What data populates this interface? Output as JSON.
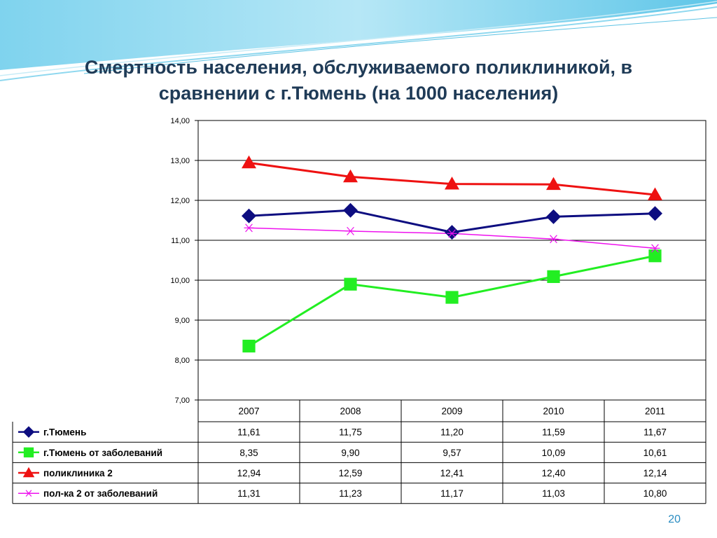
{
  "slide": {
    "title_line1": "Смертность населения, обслуживаемого поликлиникой, в",
    "title_line2": "сравнении с г.Тюмень (на 1000 населения)",
    "page_number": "20"
  },
  "colors": {
    "title": "#1f3b57",
    "page_number": "#2b8dc2"
  },
  "chart_data": {
    "type": "line",
    "categories": [
      "2007",
      "2008",
      "2009",
      "2010",
      "2011"
    ],
    "ylim": [
      7,
      14
    ],
    "ytick_labels": [
      "7,00",
      "8,00",
      "9,00",
      "10,00",
      "11,00",
      "12,00",
      "13,00",
      "14,00"
    ],
    "grid": true,
    "legend": "data-table-below",
    "series": [
      {
        "name": "г.Тюмень",
        "values": [
          11.61,
          11.75,
          11.2,
          11.59,
          11.67
        ],
        "labels": [
          "11,61",
          "11,75",
          "11,20",
          "11,59",
          "11,67"
        ],
        "color": "#0d0d80",
        "marker": "diamond"
      },
      {
        "name": "г.Тюмень от заболеваний",
        "values": [
          8.35,
          9.9,
          9.57,
          10.09,
          10.61
        ],
        "labels": [
          "8,35",
          "9,90",
          "9,57",
          "10,09",
          "10,61"
        ],
        "color": "#22ee22",
        "marker": "square"
      },
      {
        "name": "поликлиника 2",
        "values": [
          12.94,
          12.59,
          12.41,
          12.4,
          12.14
        ],
        "labels": [
          "12,94",
          "12,59",
          "12,41",
          "12,40",
          "12,14"
        ],
        "color": "#ee1111",
        "marker": "triangle"
      },
      {
        "name": "пол-ка 2 от заболеваний",
        "values": [
          11.31,
          11.23,
          11.17,
          11.03,
          10.8
        ],
        "labels": [
          "11,31",
          "11,23",
          "11,17",
          "11,03",
          "10,80"
        ],
        "color": "#ee11ee",
        "marker": "star"
      }
    ]
  }
}
